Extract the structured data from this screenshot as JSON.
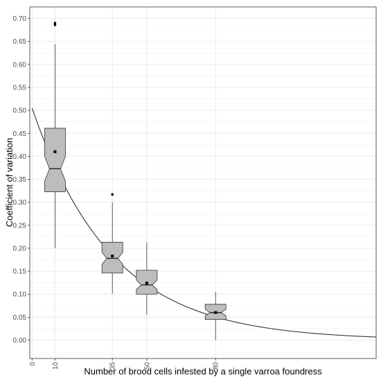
{
  "chart_data": {
    "type": "boxplot",
    "xlabel": "Number of brood cells infested by a single varroa foundress",
    "ylabel": "Coefficient of variation",
    "xlim": [
      -1,
      150
    ],
    "ylim": [
      -0.04,
      0.725
    ],
    "x_ticks": [
      0,
      10,
      35,
      50,
      80
    ],
    "y_ticks": [
      0.0,
      0.05,
      0.1,
      0.15,
      0.2,
      0.25,
      0.3,
      0.35,
      0.4,
      0.45,
      0.5,
      0.55,
      0.6,
      0.65,
      0.7
    ],
    "grid": true,
    "boxes": [
      {
        "x": 10,
        "whisker_low": 0.2,
        "q1": 0.323,
        "median": 0.373,
        "q3": 0.461,
        "whisker_high": 0.644,
        "notch_low": 0.346,
        "notch_high": 0.4,
        "mean": 0.41,
        "outliers": [
          0.686,
          0.69
        ]
      },
      {
        "x": 35,
        "whisker_low": 0.101,
        "q1": 0.146,
        "median": 0.178,
        "q3": 0.213,
        "whisker_high": 0.3,
        "notch_low": 0.165,
        "notch_high": 0.191,
        "mean": 0.183,
        "outliers": [
          0.317
        ]
      },
      {
        "x": 50,
        "whisker_low": 0.055,
        "q1": 0.1,
        "median": 0.12,
        "q3": 0.152,
        "whisker_high": 0.213,
        "notch_low": 0.11,
        "notch_high": 0.131,
        "mean": 0.124,
        "outliers": []
      },
      {
        "x": 80,
        "whisker_low": 0.0,
        "q1": 0.045,
        "median": 0.06,
        "q3": 0.078,
        "whisker_high": 0.105,
        "notch_low": 0.053,
        "notch_high": 0.067,
        "mean": 0.06,
        "outliers": []
      }
    ],
    "fit_curve": {
      "type": "exponential",
      "a": 0.505,
      "b": 0.0288,
      "x_range": [
        0,
        150
      ]
    },
    "colors": {
      "box_fill": "#bdbdbd",
      "line": "#333333",
      "grid": "#ebebeb",
      "panel_border": "#333333"
    }
  }
}
